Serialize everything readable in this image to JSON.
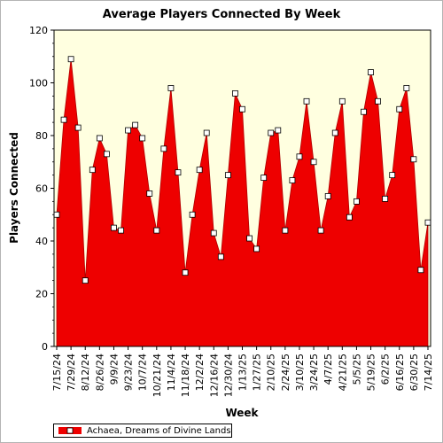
{
  "chart_data": {
    "type": "area",
    "title": "Average Players Connected By Week",
    "xlabel": "Week",
    "ylabel": "Players Connected",
    "ylim": [
      0,
      120
    ],
    "yticks": [
      0,
      20,
      40,
      60,
      80,
      100,
      120
    ],
    "x_tick_labels": [
      "7/15/24",
      "7/29/24",
      "8/12/24",
      "8/26/24",
      "9/9/24",
      "9/23/24",
      "10/7/24",
      "10/21/24",
      "11/4/24",
      "11/18/24",
      "12/2/24",
      "12/16/24",
      "12/30/24",
      "1/13/25",
      "1/27/25",
      "2/10/25",
      "2/24/25",
      "3/10/25",
      "3/24/25",
      "4/7/25",
      "4/21/25",
      "5/5/25",
      "5/19/25",
      "6/2/25",
      "6/16/25",
      "6/30/25",
      "7/14/25"
    ],
    "series": [
      {
        "name": "Achaea, Dreams of Divine Lands",
        "color": "#ee0000",
        "values": [
          50,
          86,
          109,
          83,
          25,
          67,
          79,
          73,
          45,
          44,
          82,
          84,
          79,
          58,
          44,
          75,
          98,
          66,
          28,
          50,
          67,
          81,
          43,
          34,
          65,
          96,
          90,
          41,
          37,
          64,
          81,
          82,
          44,
          63,
          72,
          93,
          70,
          44,
          57,
          81,
          93,
          49,
          55,
          89,
          104,
          93,
          56,
          65,
          90,
          98,
          71,
          29,
          47
        ]
      }
    ],
    "grid": false,
    "background": "#ffffe0",
    "legend_position": "bottom-left"
  }
}
